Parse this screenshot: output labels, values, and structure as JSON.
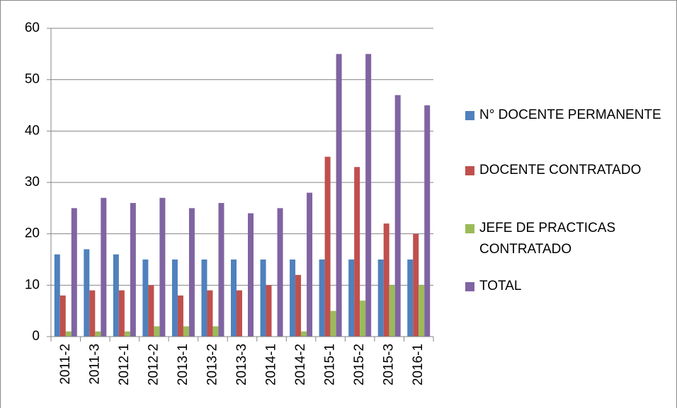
{
  "chart_data": {
    "type": "bar",
    "categories": [
      "2011-2",
      "2011-3",
      "2012-1",
      "2012-2",
      "2013-1",
      "2013-2",
      "2013-3",
      "2014-1",
      "2014-2",
      "2015-1",
      "2015-2",
      "2015-3",
      "2016-1"
    ],
    "series": [
      {
        "name": "N° DOCENTE PERMANENTE",
        "color": "#4f81bd",
        "values": [
          16,
          17,
          16,
          15,
          15,
          15,
          15,
          15,
          15,
          15,
          15,
          15,
          15
        ]
      },
      {
        "name": "DOCENTE CONTRATADO",
        "color": "#c0504d",
        "values": [
          8,
          9,
          9,
          10,
          8,
          9,
          9,
          10,
          12,
          35,
          33,
          22,
          20
        ]
      },
      {
        "name": "JEFE DE PRACTICAS CONTRATADO",
        "color": "#9bbb59",
        "values": [
          1,
          1,
          1,
          2,
          2,
          2,
          0,
          0,
          1,
          5,
          7,
          10,
          10
        ]
      },
      {
        "name": "TOTAL",
        "color": "#8064a2",
        "values": [
          25,
          27,
          26,
          27,
          25,
          26,
          24,
          25,
          28,
          55,
          55,
          47,
          45
        ]
      }
    ],
    "ylim": [
      0,
      60
    ],
    "yticks": [
      0,
      10,
      20,
      30,
      40,
      50,
      60
    ],
    "grid": true,
    "legend": "right"
  }
}
